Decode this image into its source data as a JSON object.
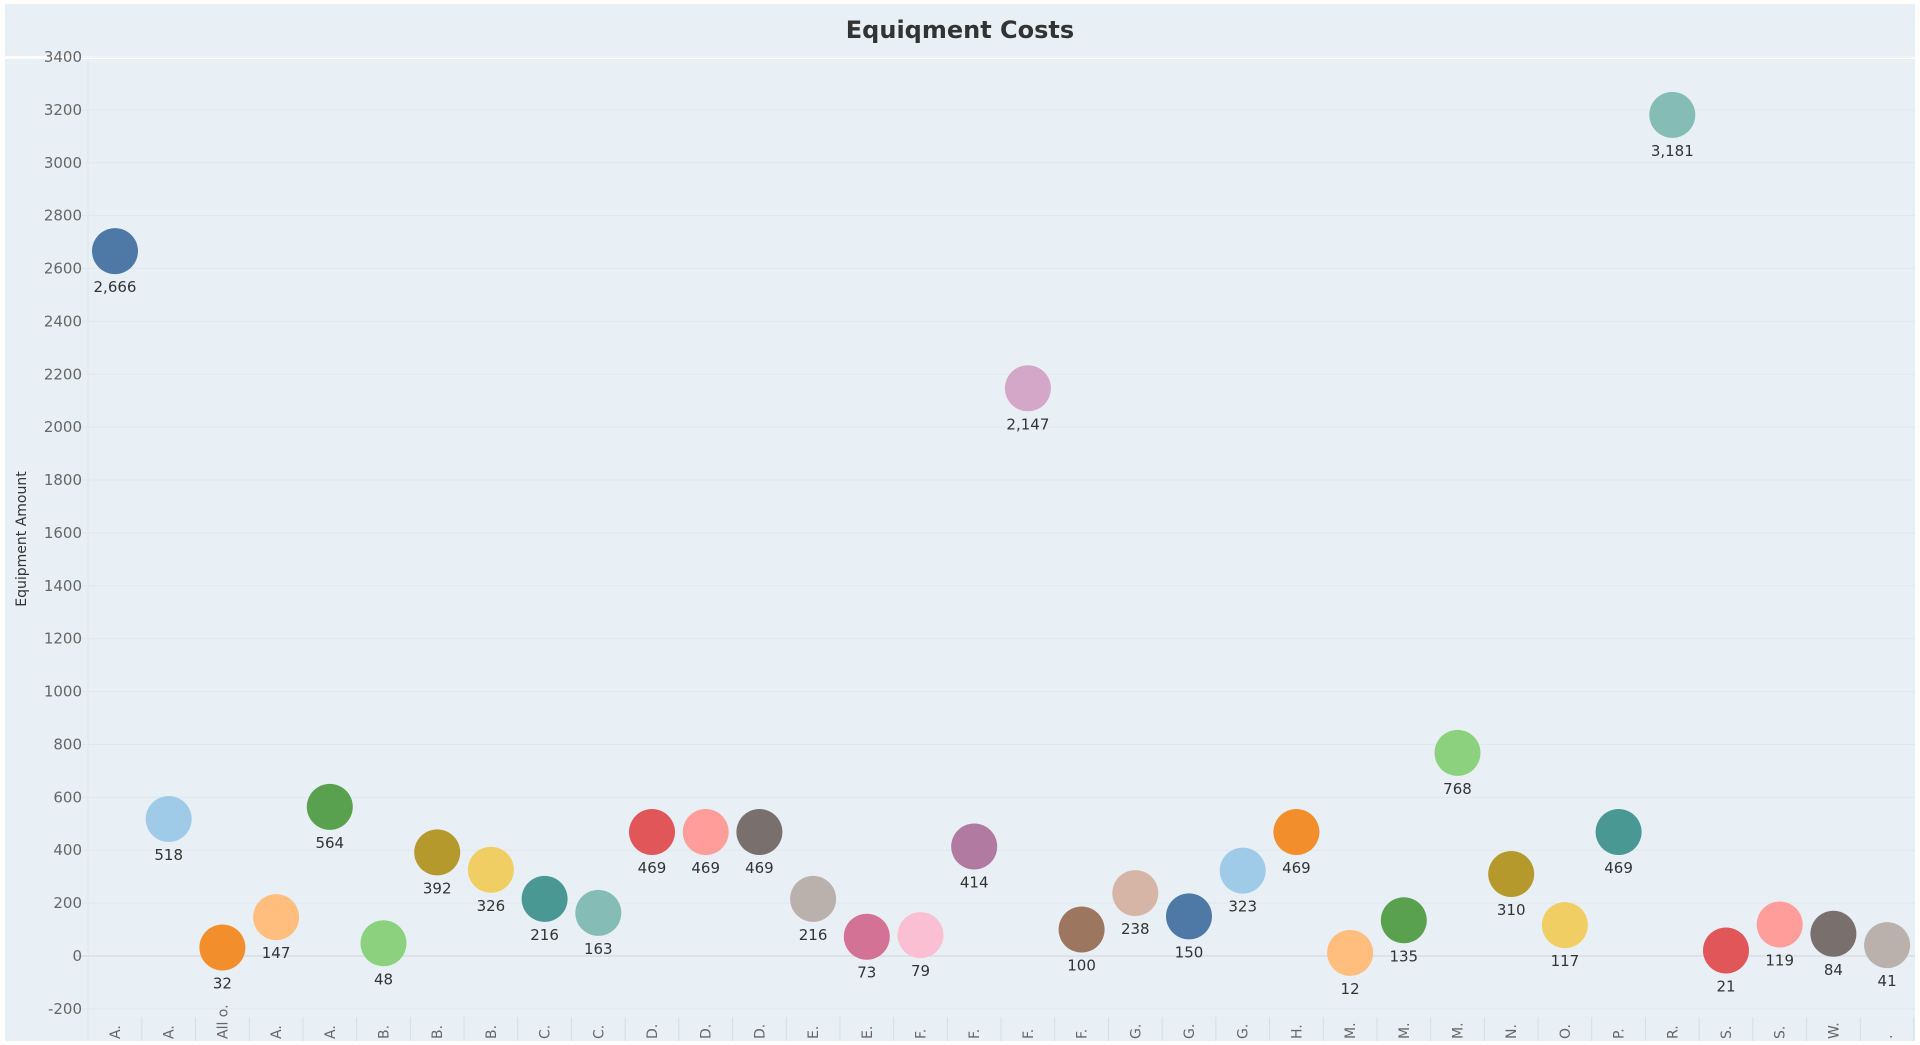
{
  "chart_data": {
    "type": "scatter",
    "title": "Equiqment Costs",
    "ylabel": "Equipment Amount",
    "xlabel": "",
    "ylim": [
      -200,
      3400
    ],
    "yticks": [
      -200,
      0,
      200,
      400,
      600,
      800,
      1000,
      1200,
      1400,
      1600,
      1800,
      2000,
      2200,
      2400,
      2600,
      2800,
      3000,
      3200,
      3400
    ],
    "grid": true,
    "categories": [
      "A.",
      "A.",
      "All o.",
      "A.",
      "A.",
      "B.",
      "B.",
      "B.",
      "C.",
      "C.",
      "D.",
      "D.",
      "D.",
      "E.",
      "E.",
      "F.",
      "F.",
      "F.",
      "F.",
      "G.",
      "G.",
      "G.",
      "H.",
      "M.",
      "M.",
      "M.",
      "N.",
      "O.",
      "P.",
      "R.",
      "S.",
      "S.",
      "W.",
      "."
    ],
    "values": [
      2666,
      518,
      32,
      147,
      564,
      48,
      392,
      326,
      216,
      163,
      469,
      469,
      469,
      216,
      73,
      79,
      414,
      2147,
      100,
      238,
      150,
      323,
      469,
      12,
      135,
      768,
      310,
      117,
      469,
      3181,
      21,
      119,
      84,
      41
    ],
    "value_labels": [
      "2,666",
      "518",
      "32",
      "147",
      "564",
      "48",
      "392",
      "326",
      "216",
      "163",
      "469",
      "469",
      "469",
      "216",
      "73",
      "79",
      "414",
      "2,147",
      "100",
      "238",
      "150",
      "323",
      "469",
      "12",
      "135",
      "768",
      "310",
      "117",
      "469",
      "3,181",
      "21",
      "119",
      "84",
      "41"
    ],
    "colors": [
      "#4e79a7",
      "#a0cbe8",
      "#f28e2b",
      "#ffbe7d",
      "#59a14f",
      "#8cd17d",
      "#b6992d",
      "#f1ce63",
      "#499894",
      "#86bcb6",
      "#e15759",
      "#ff9d9a",
      "#79706e",
      "#bab0ac",
      "#d37295",
      "#fabfd2",
      "#b07aa1",
      "#d4a6c8",
      "#9d7660",
      "#d7b5a6",
      "#4e79a7",
      "#a0cbe8",
      "#f28e2b",
      "#ffbe7d",
      "#59a14f",
      "#8cd17d",
      "#b6992d",
      "#f1ce63",
      "#499894",
      "#86bcb6",
      "#e15759",
      "#ff9d9a",
      "#79706e",
      "#bab0ac"
    ]
  }
}
